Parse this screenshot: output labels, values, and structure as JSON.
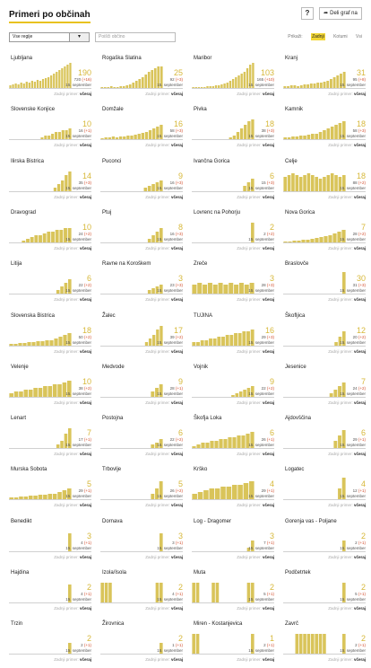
{
  "header": {
    "title": "Primeri po občinah",
    "help_label": "?",
    "share_label": "Deli graf na"
  },
  "controls": {
    "region_select": "Vse regije",
    "search_placeholder": "Poišči občino",
    "modes": [
      "Prikaži:",
      "Zadnji",
      "Kotumi",
      "Vsi"
    ],
    "active_mode": "Zadnji"
  },
  "common": {
    "date": "15. september",
    "last_label": "Zadnji primer:",
    "last_value": "včeraj"
  },
  "municipalities": [
    {
      "name": "Ljubljana",
      "big": "190",
      "total": "720",
      "delta": "(+16)",
      "bars": [
        3,
        4,
        5,
        4,
        6,
        5,
        7,
        6,
        8,
        7,
        9,
        8,
        10,
        11,
        12,
        14,
        16,
        18,
        20,
        22,
        24,
        26,
        28
      ]
    },
    {
      "name": "Rogaška Slatina",
      "big": "25",
      "total": "92",
      "delta": "(+3)",
      "bars": [
        1,
        1,
        1,
        2,
        1,
        1,
        2,
        2,
        3,
        4,
        6,
        8,
        10,
        12,
        15,
        18,
        20,
        22,
        24,
        24
      ]
    },
    {
      "name": "Maribor",
      "big": "103",
      "total": "165",
      "delta": "(+10)",
      "bars": [
        1,
        1,
        1,
        1,
        1,
        2,
        2,
        2,
        3,
        3,
        4,
        5,
        6,
        8,
        10,
        12,
        14,
        16,
        18,
        22,
        26,
        28
      ]
    },
    {
      "name": "Kranj",
      "big": "31",
      "total": "95",
      "delta": "(+8)",
      "bars": [
        2,
        2,
        3,
        3,
        2,
        3,
        4,
        4,
        5,
        5,
        6,
        6,
        7,
        8,
        10,
        12,
        14,
        16,
        18
      ]
    },
    {
      "name": "Slovenske Konjice",
      "big": "10",
      "total": "16",
      "delta": "(+1)",
      "bars": [
        0,
        0,
        0,
        0,
        0,
        0,
        0,
        0,
        0,
        2,
        4,
        4,
        6,
        8,
        8,
        10,
        10,
        12
      ]
    },
    {
      "name": "Domžale",
      "big": "16",
      "total": "58",
      "delta": "(+3)",
      "bars": [
        1,
        2,
        2,
        3,
        2,
        3,
        3,
        4,
        4,
        5,
        6,
        7,
        8,
        10,
        12,
        14,
        16
      ]
    },
    {
      "name": "Pivka",
      "big": "18",
      "total": "38",
      "delta": "(+3)",
      "bars": [
        0,
        0,
        0,
        0,
        0,
        0,
        0,
        0,
        0,
        0,
        2,
        4,
        8,
        12,
        16,
        20,
        22
      ]
    },
    {
      "name": "Kamnik",
      "big": "18",
      "total": "58",
      "delta": "(+3)",
      "bars": [
        2,
        2,
        3,
        3,
        4,
        4,
        5,
        6,
        6,
        8,
        10,
        12,
        14,
        16,
        18,
        20
      ]
    },
    {
      "name": "Ilirska Bistrica",
      "big": "14",
      "total": "35",
      "delta": "(+3)",
      "bars": [
        0,
        0,
        0,
        0,
        0,
        0,
        0,
        0,
        0,
        0,
        0,
        0,
        4,
        8,
        12,
        18,
        22
      ]
    },
    {
      "name": "Puconci",
      "big": "9",
      "total": "16",
      "delta": "(+3)",
      "bars": [
        0,
        0,
        0,
        0,
        0,
        0,
        0,
        0,
        0,
        0,
        0,
        4,
        6,
        8,
        10,
        12
      ]
    },
    {
      "name": "Ivančna Gorica",
      "big": "6",
      "total": "15",
      "delta": "(+3)",
      "bars": [
        0,
        0,
        0,
        0,
        0,
        0,
        0,
        0,
        0,
        0,
        0,
        0,
        0,
        6,
        10,
        14
      ]
    },
    {
      "name": "Celje",
      "big": "18",
      "total": "88",
      "delta": "(+2)",
      "bars": [
        16,
        18,
        20,
        18,
        16,
        18,
        20,
        18,
        16,
        14,
        16,
        18,
        20,
        18,
        16,
        18
      ]
    },
    {
      "name": "Dravograd",
      "big": "10",
      "total": "24",
      "delta": "(+2)",
      "bars": [
        0,
        0,
        0,
        2,
        4,
        6,
        8,
        8,
        10,
        12,
        12,
        14,
        14,
        16,
        16
      ]
    },
    {
      "name": "Ptuj",
      "big": "8",
      "total": "16",
      "delta": "(+3)",
      "bars": [
        0,
        0,
        0,
        0,
        0,
        0,
        0,
        0,
        0,
        0,
        0,
        0,
        4,
        8,
        12,
        16
      ]
    },
    {
      "name": "Lovrenc na Pohorju",
      "big": "2",
      "total": "2",
      "delta": "(+2)",
      "bars": [
        0,
        0,
        0,
        0,
        0,
        0,
        0,
        0,
        0,
        0,
        0,
        0,
        0,
        0,
        0,
        22
      ]
    },
    {
      "name": "Nova Gorica",
      "big": "7",
      "total": "28",
      "delta": "(+2)",
      "bars": [
        1,
        1,
        2,
        2,
        3,
        3,
        4,
        5,
        6,
        7,
        8,
        10,
        12,
        14
      ]
    },
    {
      "name": "Litija",
      "big": "6",
      "total": "22",
      "delta": "(+2)",
      "bars": [
        0,
        0,
        0,
        0,
        0,
        0,
        0,
        0,
        0,
        0,
        0,
        0,
        4,
        8,
        12,
        16
      ]
    },
    {
      "name": "Ravne na Koroškem",
      "big": "3",
      "total": "23",
      "delta": "(+3)",
      "bars": [
        0,
        0,
        0,
        0,
        0,
        0,
        0,
        0,
        0,
        0,
        0,
        0,
        4,
        6,
        8,
        10
      ]
    },
    {
      "name": "Zreče",
      "big": "3",
      "total": "28",
      "delta": "(+3)",
      "bars": [
        10,
        12,
        10,
        12,
        10,
        12,
        10,
        12,
        10,
        12,
        10,
        12
      ]
    },
    {
      "name": "Braslovče",
      "big": "30",
      "total": "31",
      "delta": "(+3)",
      "bars": [
        0,
        0,
        0,
        0,
        0,
        0,
        0,
        0,
        0,
        0,
        0,
        0,
        0,
        0,
        0,
        24
      ]
    },
    {
      "name": "Slovenska Bistrica",
      "big": "18",
      "total": "50",
      "delta": "(+2)",
      "bars": [
        2,
        2,
        3,
        3,
        4,
        4,
        5,
        5,
        6,
        6,
        8,
        10,
        12,
        14
      ]
    },
    {
      "name": "Žalec",
      "big": "17",
      "total": "39",
      "delta": "(+2)",
      "bars": [
        0,
        0,
        0,
        0,
        0,
        0,
        0,
        0,
        0,
        0,
        0,
        0,
        4,
        8,
        12,
        18,
        22
      ]
    },
    {
      "name": "TUJINA",
      "big": "16",
      "total": "29",
      "delta": "(+3)",
      "bars": [
        4,
        4,
        6,
        6,
        8,
        8,
        10,
        10,
        12,
        12,
        14,
        14,
        16,
        16,
        18
      ]
    },
    {
      "name": "Škofljica",
      "big": "12",
      "total": "20",
      "delta": "(+2)",
      "bars": [
        0,
        0,
        0,
        0,
        0,
        0,
        0,
        0,
        0,
        0,
        0,
        0,
        0,
        4,
        10,
        16
      ]
    },
    {
      "name": "Velenje",
      "big": "10",
      "total": "38",
      "delta": "(+2)",
      "bars": [
        4,
        6,
        6,
        8,
        8,
        10,
        10,
        12,
        12,
        14,
        14,
        16,
        18
      ]
    },
    {
      "name": "Medvode",
      "big": "9",
      "total": "28",
      "delta": "(+1)",
      "bars": [
        0,
        0,
        0,
        0,
        0,
        0,
        0,
        0,
        0,
        0,
        0,
        0,
        6,
        10,
        14
      ]
    },
    {
      "name": "Vojnik",
      "big": "9",
      "total": "22",
      "delta": "(+2)",
      "bars": [
        0,
        0,
        0,
        0,
        0,
        0,
        0,
        0,
        0,
        0,
        2,
        4,
        6,
        8,
        10,
        12
      ]
    },
    {
      "name": "Jesenice",
      "big": "7",
      "total": "24",
      "delta": "(+2)",
      "bars": [
        0,
        0,
        0,
        0,
        0,
        0,
        0,
        0,
        0,
        0,
        0,
        4,
        8,
        12,
        16
      ]
    },
    {
      "name": "Lenart",
      "big": "7",
      "total": "17",
      "delta": "(+1)",
      "bars": [
        0,
        0,
        0,
        0,
        0,
        0,
        0,
        0,
        0,
        0,
        0,
        0,
        4,
        8,
        16,
        22
      ]
    },
    {
      "name": "Postojna",
      "big": "6",
      "total": "22",
      "delta": "(+2)",
      "bars": [
        0,
        0,
        0,
        0,
        0,
        0,
        0,
        0,
        0,
        0,
        0,
        0,
        4,
        6,
        10
      ]
    },
    {
      "name": "Škofja Loka",
      "big": "6",
      "total": "26",
      "delta": "(+1)",
      "bars": [
        2,
        4,
        6,
        6,
        8,
        8,
        10,
        10,
        12,
        12,
        14,
        14,
        16,
        18
      ]
    },
    {
      "name": "Ajdovščina",
      "big": "6",
      "total": "29",
      "delta": "(+1)",
      "bars": [
        0,
        0,
        0,
        0,
        0,
        0,
        0,
        0,
        0,
        0,
        0,
        0,
        8,
        14,
        20
      ]
    },
    {
      "name": "Murska Sobota",
      "big": "5",
      "total": "29",
      "delta": "(+1)",
      "bars": [
        2,
        2,
        3,
        3,
        4,
        4,
        5,
        5,
        6,
        6,
        8,
        10,
        12
      ]
    },
    {
      "name": "Trbovlje",
      "big": "5",
      "total": "26",
      "delta": "(+2)",
      "bars": [
        0,
        0,
        0,
        0,
        0,
        0,
        0,
        0,
        0,
        0,
        0,
        0,
        6,
        12,
        20
      ]
    },
    {
      "name": "Krško",
      "big": "4",
      "total": "29",
      "delta": "(+1)",
      "bars": [
        6,
        8,
        10,
        12,
        12,
        14,
        14,
        16,
        16,
        18,
        20
      ]
    },
    {
      "name": "Logatec",
      "big": "4",
      "total": "12",
      "delta": "(+1)",
      "bars": [
        0,
        0,
        0,
        0,
        0,
        0,
        0,
        0,
        0,
        0,
        0,
        0,
        0,
        12,
        24
      ]
    },
    {
      "name": "Benedikt",
      "big": "3",
      "total": "4",
      "delta": "(+1)",
      "bars": [
        0,
        0,
        0,
        0,
        0,
        0,
        0,
        0,
        0,
        0,
        0,
        0,
        0,
        0,
        0,
        20
      ]
    },
    {
      "name": "Dornava",
      "big": "3",
      "total": "3",
      "delta": "(+1)",
      "bars": [
        0,
        0,
        0,
        0,
        0,
        0,
        0,
        0,
        0,
        0,
        0,
        0,
        0,
        0,
        0,
        20
      ]
    },
    {
      "name": "Log - Dragomer",
      "big": "3",
      "total": "7",
      "delta": "(+1)",
      "bars": [
        0,
        0,
        0,
        0,
        0,
        0,
        0,
        0,
        0,
        0,
        0,
        0,
        0,
        0,
        4,
        12
      ]
    },
    {
      "name": "Gorenja vas - Poljane",
      "big": "2",
      "total": "2",
      "delta": "(+1)",
      "bars": [
        0,
        0,
        0,
        0,
        0,
        0,
        0,
        0,
        0,
        0,
        0,
        0,
        0,
        0,
        0,
        12
      ]
    },
    {
      "name": "Hajdina",
      "big": "2",
      "total": "4",
      "delta": "(+1)",
      "bars": [
        0,
        0,
        0,
        0,
        0,
        0,
        0,
        0,
        0,
        0,
        0,
        0,
        0,
        0,
        0,
        20
      ]
    },
    {
      "name": "Izola/Isola",
      "big": "2",
      "total": "4",
      "delta": "(+1)",
      "bars": [
        22,
        22,
        22,
        0,
        0,
        0,
        0,
        0,
        0,
        0,
        0,
        0,
        0,
        0,
        22,
        22
      ]
    },
    {
      "name": "Muta",
      "big": "2",
      "total": "5",
      "delta": "(+1)",
      "bars": [
        22,
        22,
        0,
        0,
        0,
        22,
        22,
        0,
        0,
        0,
        0,
        0,
        0,
        0,
        22,
        22
      ]
    },
    {
      "name": "Podčetrtek",
      "big": "2",
      "total": "5",
      "delta": "(+1)",
      "bars": [
        0,
        0,
        0,
        0,
        0,
        0,
        0,
        0,
        0,
        0,
        0,
        0,
        0,
        0,
        0,
        22
      ]
    },
    {
      "name": "Trzin",
      "big": "2",
      "total": "2",
      "delta": "(+1)",
      "bars": [
        0,
        0,
        0,
        0,
        0,
        0,
        0,
        0,
        0,
        0,
        0,
        0,
        0,
        0,
        0,
        12
      ]
    },
    {
      "name": "Žirovnica",
      "big": "2",
      "total": "1",
      "delta": "(+1)",
      "bars": [
        0,
        0,
        0,
        0,
        0,
        0,
        0,
        0,
        0,
        0,
        0,
        0,
        0,
        0,
        0,
        12
      ]
    },
    {
      "name": "Miren - Kostanjevica",
      "big": "1",
      "total": "2",
      "delta": "(+1)",
      "bars": [
        22,
        22,
        0,
        0,
        0,
        0,
        0,
        0,
        0,
        0,
        0,
        0,
        0,
        0,
        0,
        22
      ]
    },
    {
      "name": "Zavrč",
      "big": "2",
      "total": "2",
      "delta": "(+1)",
      "bars": [
        0,
        0,
        0,
        22,
        22,
        22,
        22,
        22,
        22,
        22,
        22,
        0,
        0,
        0,
        0,
        22
      ]
    }
  ]
}
